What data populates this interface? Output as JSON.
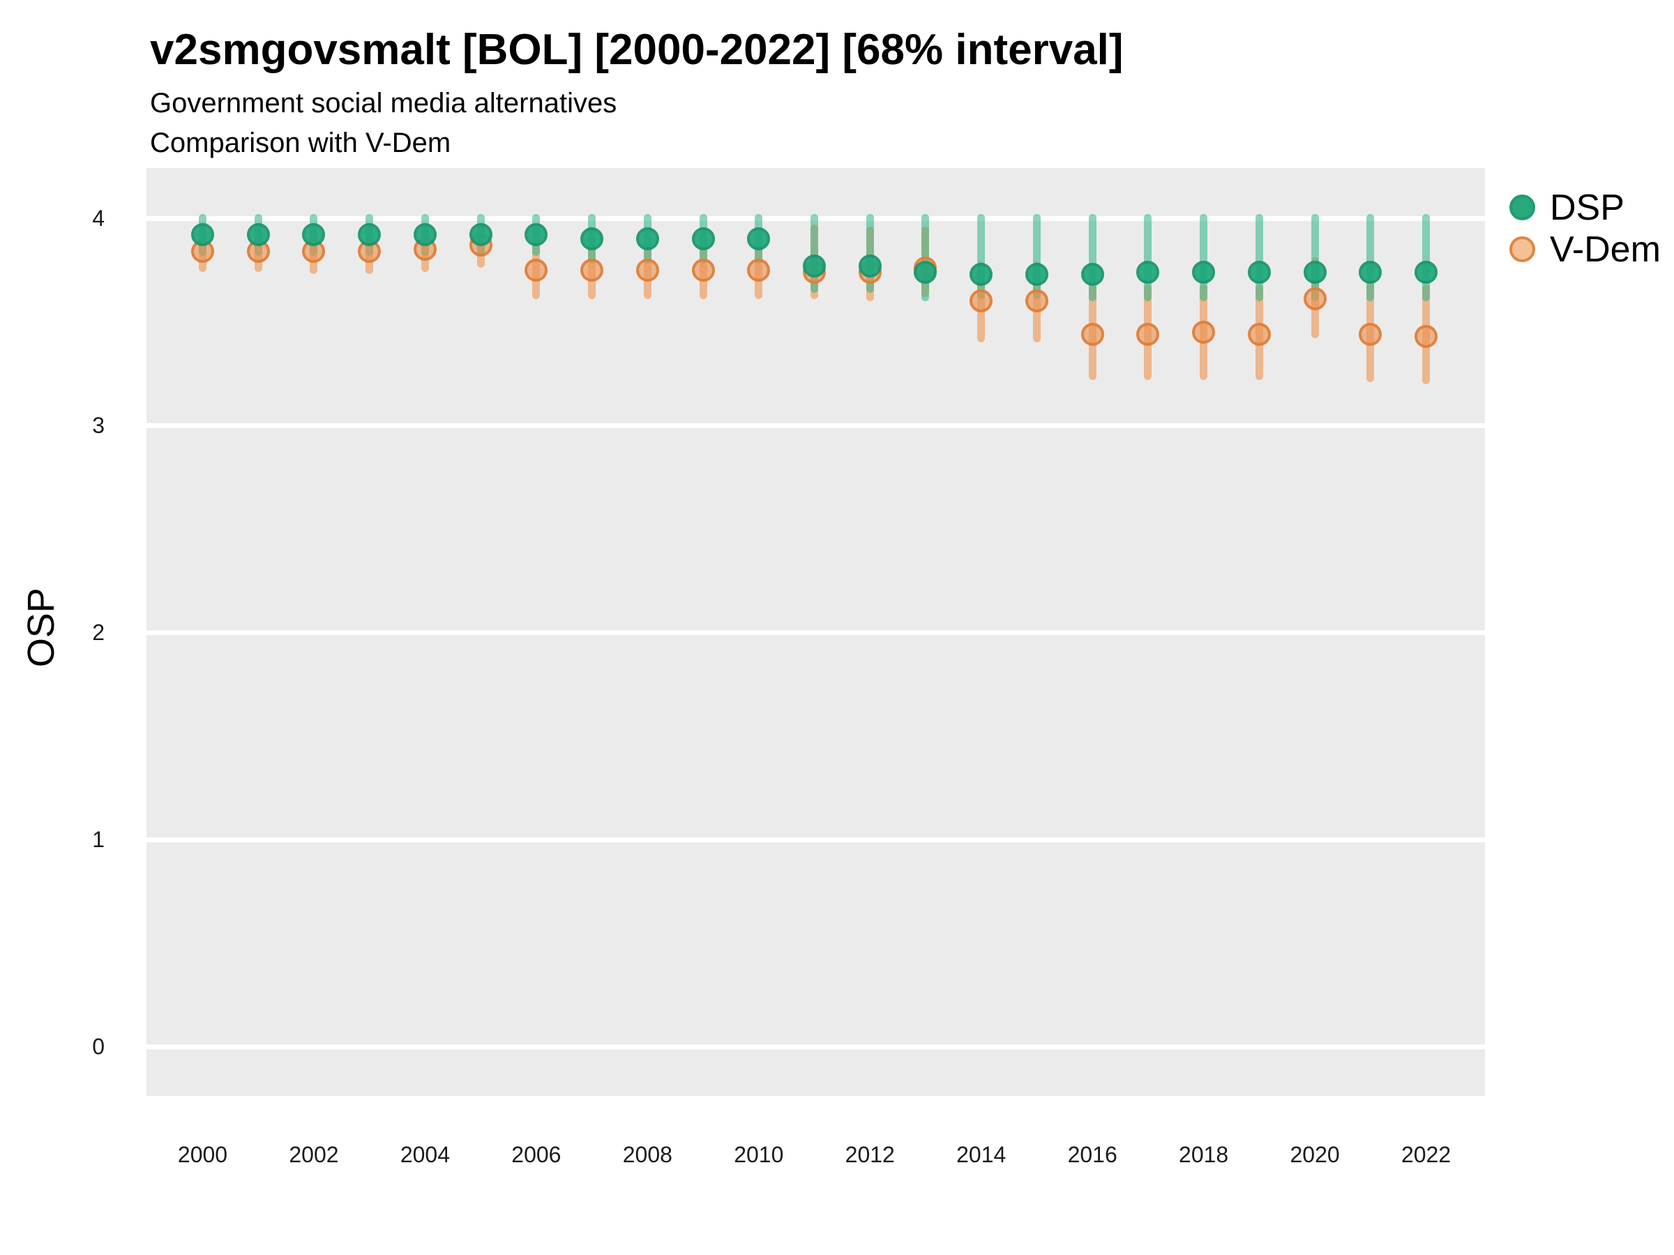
{
  "header": {
    "title": "v2smgovsmalt [BOL] [2000-2022] [68% interval]",
    "subtitle_line1": "Government social media alternatives",
    "subtitle_line2": "Comparison with V-Dem"
  },
  "colors": {
    "panel_background": "#ebebeb",
    "gridline": "#ffffff",
    "dsp_point_fill": "#1ea87c",
    "dsp_point_border": "#16946c",
    "dsp_interval": "rgba(44,179,135,0.55)",
    "vdem_point_fill": "rgba(236,145,80,0.62)",
    "vdem_point_border": "rgba(222,125,55,0.9)",
    "vdem_interval": "rgba(238,139,62,0.55)",
    "legend_dsp_dot_fill": "#29a87d",
    "legend_dsp_dot_border": "#1f9c72",
    "legend_vdem_dot_fill": "#f5c094",
    "legend_vdem_dot_border": "#e1853f",
    "text": "#000000"
  },
  "chart_data": {
    "type": "pointrange",
    "title": "v2smgovsmalt [BOL] [2000-2022] [68% interval]",
    "subtitle": [
      "Government social media alternatives",
      "Comparison with V-Dem"
    ],
    "xlabel": "",
    "ylabel": "OSP",
    "interval": "68%",
    "grid": "horizontal-only",
    "legend_position": "right",
    "ylim": [
      -0.24,
      4.24
    ],
    "y_ticks": [
      0,
      1,
      2,
      3,
      4
    ],
    "x_tick_years": [
      2000,
      2002,
      2004,
      2006,
      2008,
      2010,
      2012,
      2014,
      2016,
      2018,
      2020,
      2022
    ],
    "x": [
      2000,
      2001,
      2002,
      2003,
      2004,
      2005,
      2006,
      2007,
      2008,
      2009,
      2010,
      2011,
      2012,
      2013,
      2014,
      2015,
      2016,
      2017,
      2018,
      2019,
      2020,
      2021,
      2022
    ],
    "series": [
      {
        "name": "DSP",
        "values": [
          3.92,
          3.92,
          3.92,
          3.92,
          3.92,
          3.92,
          3.92,
          3.9,
          3.9,
          3.9,
          3.9,
          3.77,
          3.77,
          3.74,
          3.73,
          3.73,
          3.73,
          3.74,
          3.74,
          3.74,
          3.74,
          3.74,
          3.74
        ],
        "lower": [
          3.84,
          3.84,
          3.84,
          3.84,
          3.84,
          3.84,
          3.84,
          3.8,
          3.8,
          3.8,
          3.8,
          3.66,
          3.66,
          3.62,
          3.63,
          3.63,
          3.62,
          3.62,
          3.62,
          3.62,
          3.62,
          3.62,
          3.62
        ],
        "upper": [
          4.0,
          4.0,
          4.0,
          4.0,
          4.0,
          4.0,
          4.0,
          4.0,
          4.0,
          4.0,
          4.0,
          4.0,
          4.0,
          4.0,
          4.0,
          4.0,
          4.0,
          4.0,
          4.0,
          4.0,
          4.0,
          4.0,
          4.0
        ]
      },
      {
        "name": "V-Dem",
        "values": [
          3.84,
          3.84,
          3.84,
          3.84,
          3.85,
          3.87,
          3.75,
          3.75,
          3.75,
          3.75,
          3.75,
          3.74,
          3.74,
          3.76,
          3.6,
          3.6,
          3.44,
          3.44,
          3.45,
          3.44,
          3.61,
          3.44,
          3.43
        ],
        "lower": [
          3.76,
          3.76,
          3.75,
          3.75,
          3.76,
          3.78,
          3.63,
          3.63,
          3.63,
          3.63,
          3.63,
          3.63,
          3.62,
          3.64,
          3.42,
          3.42,
          3.24,
          3.24,
          3.24,
          3.24,
          3.44,
          3.23,
          3.22
        ],
        "upper": [
          3.93,
          3.93,
          3.93,
          3.93,
          3.93,
          3.95,
          3.87,
          3.86,
          3.86,
          3.86,
          3.86,
          3.95,
          3.94,
          3.94,
          3.77,
          3.77,
          3.66,
          3.66,
          3.66,
          3.66,
          3.79,
          3.67,
          3.66
        ]
      }
    ]
  },
  "legend": {
    "items": [
      {
        "label": "DSP"
      },
      {
        "label": "V-Dem"
      }
    ]
  },
  "y_axis": {
    "title": "OSP"
  }
}
